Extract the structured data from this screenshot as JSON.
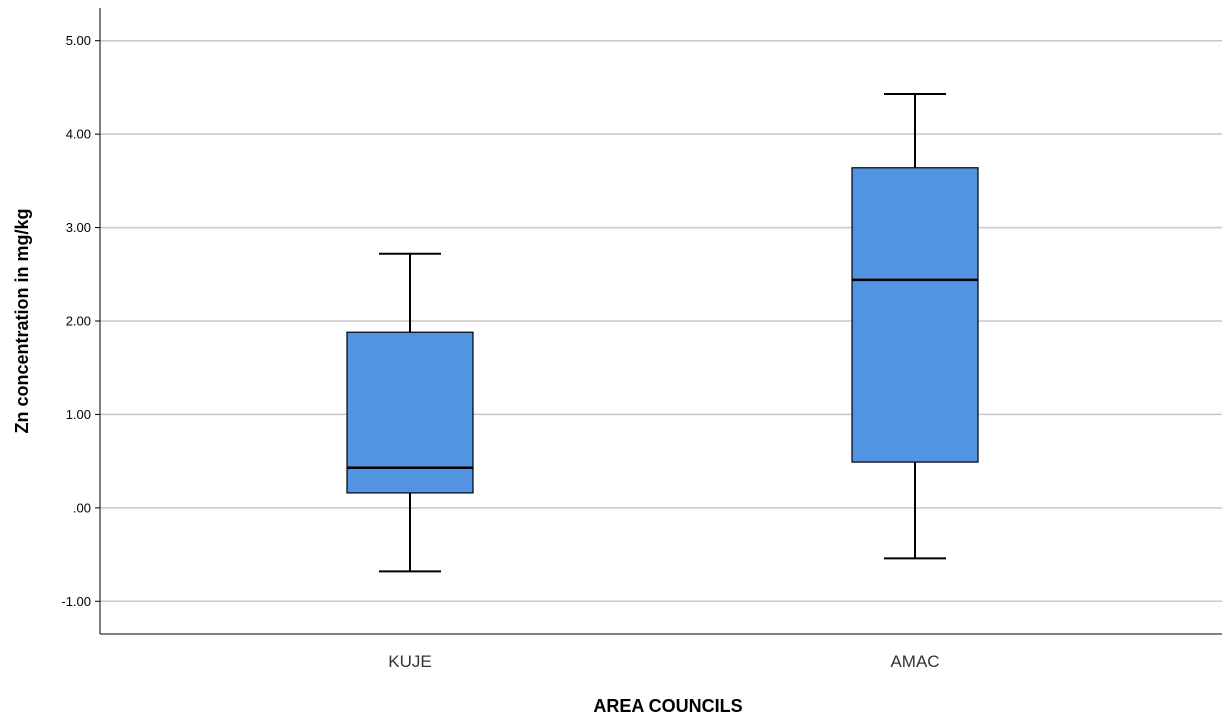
{
  "chart_data": {
    "type": "box",
    "title": "",
    "xlabel": "AREA COUNCILS",
    "ylabel": "Zn concentration in mg/kg",
    "ylim": [
      -1.35,
      5.35
    ],
    "grid": true,
    "legend": "none",
    "y_ticks": [
      {
        "value": 5,
        "label": "5.00"
      },
      {
        "value": 4,
        "label": "4.00"
      },
      {
        "value": 3,
        "label": "3.00"
      },
      {
        "value": 2,
        "label": "2.00"
      },
      {
        "value": 1,
        "label": "1.00"
      },
      {
        "value": 0,
        "label": ".00"
      },
      {
        "value": -1,
        "label": "-1.00"
      }
    ],
    "categories": [
      "KUJE",
      "AMAC"
    ],
    "boxes": [
      {
        "category": "KUJE",
        "min": -0.68,
        "q1": 0.16,
        "median": 0.43,
        "q3": 1.88,
        "max": 2.72
      },
      {
        "category": "AMAC",
        "min": -0.54,
        "q1": 0.49,
        "median": 2.44,
        "q3": 3.64,
        "max": 4.43
      }
    ],
    "colors": {
      "box_fill": "#5294e2",
      "box_stroke": "#000000",
      "grid": "#c8c8c8",
      "axis": "#000000"
    }
  }
}
